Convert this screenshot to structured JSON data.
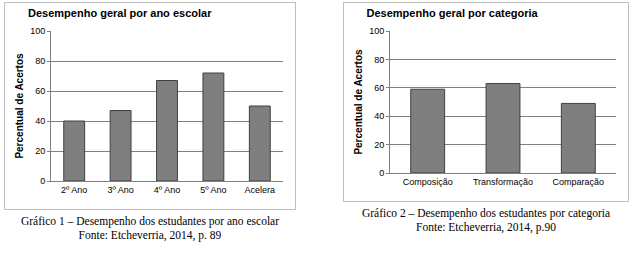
{
  "chart_data": [
    {
      "type": "bar",
      "title": "Desempenho geral por ano escolar",
      "y_label": "Percentual de Acertos",
      "categories": [
        "2º Ano",
        "3º Ano",
        "4º Ano",
        "5º Ano",
        "Acelera"
      ],
      "values": [
        40,
        47,
        67,
        72,
        50
      ],
      "color": "#7f7f7f",
      "ylim": [
        0,
        100
      ],
      "yticks": [
        0,
        20,
        40,
        60,
        80,
        100
      ],
      "grid": true,
      "caption": "Gráfico 1 – Desempenho dos estudantes por ano escolar",
      "source": "Fonte: Etcheverria, 2014, p. 89"
    },
    {
      "type": "bar",
      "title": "Desempenho geral por categoria",
      "y_label": "Percentual de Acertos",
      "categories": [
        "Composição",
        "Transformação",
        "Comparação"
      ],
      "values": [
        59,
        63,
        49
      ],
      "color": "#7f7f7f",
      "ylim": [
        0,
        100
      ],
      "yticks": [
        0,
        20,
        40,
        60,
        80,
        100
      ],
      "grid": true,
      "caption": "Gráfico 2 – Desempenho dos estudantes por categoria",
      "source": "Fonte: Etcheverria, 2014, p.90"
    }
  ]
}
